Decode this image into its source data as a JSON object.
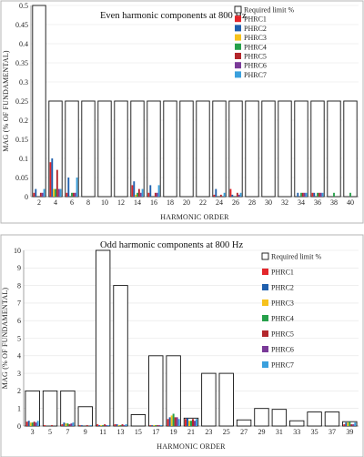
{
  "chart_data": [
    {
      "type": "bar",
      "title": "Even harmonic components at 800 Hz",
      "xlabel": "HARMONIC ORDER",
      "ylabel": "MAG (% OF FUNDAMENTAL)",
      "ylim": [
        0,
        0.5
      ],
      "yticks": [
        "0",
        "0.05",
        "0.1",
        "0.15",
        "0.2",
        "0.25",
        "0.3",
        "0.35",
        "0.4",
        "0.45",
        "0.5"
      ],
      "categories": [
        "2",
        "4",
        "6",
        "8",
        "10",
        "12",
        "14",
        "16",
        "18",
        "20",
        "22",
        "24",
        "26",
        "28",
        "30",
        "32",
        "34",
        "36",
        "38",
        "40"
      ],
      "grid": true,
      "legend_position": "right",
      "limit": {
        "name": "Required limit %",
        "values": [
          0.5,
          0.25,
          0.25,
          0.25,
          0.25,
          0.25,
          0.25,
          0.25,
          0.25,
          0.25,
          0.25,
          0.25,
          0.25,
          0.25,
          0.25,
          0.25,
          0.25,
          0.25,
          0.25,
          0.25
        ]
      },
      "series": [
        {
          "name": "PHRC1",
          "color": "#e3262b",
          "values": [
            0.01,
            0.09,
            0.01,
            0,
            0,
            0,
            0.03,
            0.01,
            0,
            0,
            0,
            0.005,
            0.02,
            0,
            0,
            0,
            0,
            0.01,
            0,
            0
          ]
        },
        {
          "name": "PHRC2",
          "color": "#1f5fad",
          "values": [
            0.02,
            0.1,
            0.05,
            0,
            0,
            0,
            0.04,
            0.03,
            0,
            0,
            0,
            0.02,
            0.005,
            0,
            0,
            0,
            0.01,
            0.01,
            0,
            0
          ]
        },
        {
          "name": "PHRC3",
          "color": "#f6c21c",
          "values": [
            0,
            0.02,
            0,
            0,
            0,
            0,
            0.005,
            0,
            0,
            0,
            0,
            0,
            0,
            0,
            0,
            0,
            0,
            0,
            0,
            0
          ]
        },
        {
          "name": "PHRC4",
          "color": "#26a04a",
          "values": [
            0,
            0.02,
            0.01,
            0,
            0,
            0,
            0.01,
            0,
            0,
            0,
            0,
            0,
            0,
            0,
            0,
            0,
            0.01,
            0.01,
            0.01,
            0.01
          ]
        },
        {
          "name": "PHRC5",
          "color": "#b3262b",
          "values": [
            0.01,
            0.07,
            0.01,
            0,
            0,
            0,
            0.02,
            0.01,
            0,
            0,
            0,
            0.005,
            0.01,
            0,
            0,
            0,
            0.01,
            0.01,
            0,
            0
          ]
        },
        {
          "name": "PHRC6",
          "color": "#7a3a98",
          "values": [
            0.01,
            0.02,
            0.01,
            0,
            0,
            0,
            0.01,
            0.01,
            0,
            0,
            0,
            0,
            0.005,
            0,
            0,
            0,
            0.01,
            0.01,
            0,
            0
          ]
        },
        {
          "name": "PHRC7",
          "color": "#3aa0dd",
          "values": [
            0.02,
            0.02,
            0.05,
            0,
            0,
            0,
            0.02,
            0.03,
            0,
            0,
            0,
            0.01,
            0.01,
            0,
            0,
            0,
            0.01,
            0.01,
            0,
            0
          ]
        }
      ]
    },
    {
      "type": "bar",
      "title": "Odd harmonic components at 800 Hz",
      "xlabel": "HARMONIC ORDER",
      "ylabel": "MAG (% OF FUNDAMENTAL)",
      "ylim": [
        0,
        10
      ],
      "yticks": [
        "0",
        "1",
        "2",
        "3",
        "4",
        "5",
        "6",
        "7",
        "8",
        "9",
        "10"
      ],
      "categories": [
        "3",
        "5",
        "7",
        "9",
        "11",
        "13",
        "15",
        "17",
        "19",
        "21",
        "23",
        "25",
        "27",
        "29",
        "31",
        "33",
        "35",
        "37",
        "39"
      ],
      "grid": true,
      "legend_position": "right",
      "limit": {
        "name": "Required limit %",
        "values": [
          2,
          2,
          2,
          1.1,
          10,
          8,
          0.65,
          4,
          4,
          0.45,
          3,
          3,
          0.35,
          1,
          0.95,
          0.3,
          0.8,
          0.8,
          0.25
        ]
      },
      "series": [
        {
          "name": "PHRC1",
          "color": "#e3262b",
          "values": [
            0.25,
            0.05,
            0.1,
            0.05,
            0.1,
            0.1,
            0,
            0.05,
            0.4,
            0.4,
            0,
            0,
            0,
            0,
            0,
            0,
            0,
            0,
            0.1
          ]
        },
        {
          "name": "PHRC2",
          "color": "#1f5fad",
          "values": [
            0.3,
            0,
            0.2,
            0.05,
            0.05,
            0.1,
            0,
            0.05,
            0.5,
            0.45,
            0,
            0,
            0,
            0,
            0,
            0,
            0,
            0,
            0.2
          ]
        },
        {
          "name": "PHRC3",
          "color": "#f6c21c",
          "values": [
            0.2,
            0,
            0.15,
            0,
            0.05,
            0.05,
            0,
            0.05,
            0.6,
            0.3,
            0,
            0,
            0,
            0,
            0,
            0,
            0,
            0,
            0.2
          ]
        },
        {
          "name": "PHRC4",
          "color": "#26a04a",
          "values": [
            0.2,
            0,
            0.15,
            0,
            0.05,
            0.05,
            0,
            0.05,
            0.7,
            0.3,
            0,
            0,
            0,
            0,
            0,
            0,
            0,
            0,
            0.25
          ]
        },
        {
          "name": "PHRC5",
          "color": "#b3262b",
          "values": [
            0.25,
            0.05,
            0.1,
            0.05,
            0.1,
            0.1,
            0,
            0.05,
            0.5,
            0.4,
            0,
            0,
            0,
            0,
            0,
            0,
            0,
            0,
            0.1
          ]
        },
        {
          "name": "PHRC6",
          "color": "#7a3a98",
          "values": [
            0.2,
            0,
            0.15,
            0,
            0.05,
            0.05,
            0,
            0.05,
            0.5,
            0.3,
            0,
            0,
            0,
            0,
            0,
            0,
            0,
            0,
            0.1
          ]
        },
        {
          "name": "PHRC7",
          "color": "#3aa0dd",
          "values": [
            0.3,
            0,
            0.2,
            0.05,
            0.05,
            0.1,
            0,
            0.05,
            0.4,
            0.4,
            0,
            0,
            0,
            0,
            0,
            0,
            0,
            0,
            0.2
          ]
        }
      ]
    }
  ]
}
